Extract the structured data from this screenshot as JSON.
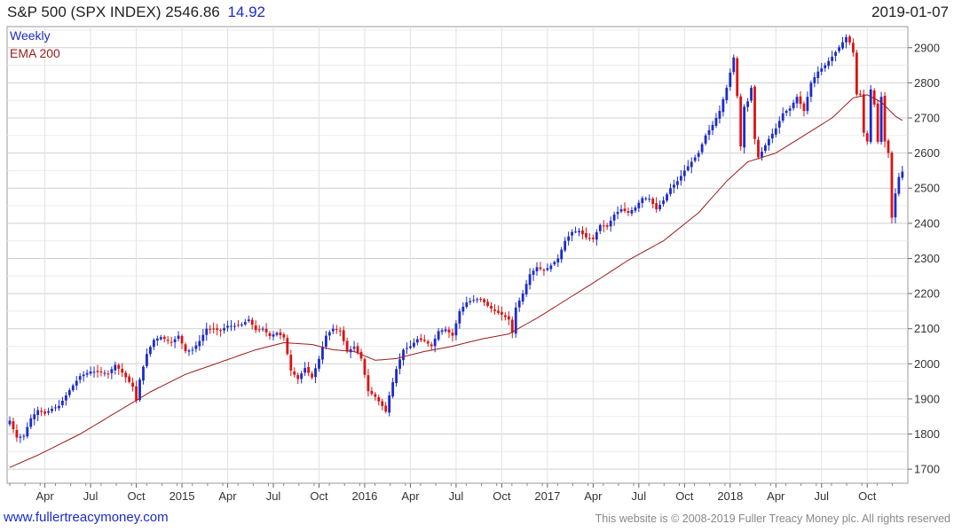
{
  "header": {
    "name": "S&P 500 (SPX INDEX)",
    "last": "2546.86",
    "change": "14.92"
  },
  "date": "2019-01-07",
  "footer": {
    "left": "www.fullertreacymoney.com",
    "right": "This website is © 2008-2019 Fuller Treacy Money plc. All rights reserved"
  },
  "colors": {
    "up": "#1a2bcc",
    "down": "#dd1111",
    "ema": "#9b1b1b"
  },
  "chart_data": {
    "type": "candlestick",
    "frequency": "Weekly",
    "legend": [
      "Weekly",
      "EMA 200"
    ],
    "ylim": [
      1660,
      2960
    ],
    "y_ticks": [
      1700,
      1800,
      1900,
      2000,
      2100,
      2200,
      2300,
      2400,
      2500,
      2600,
      2700,
      2800,
      2900
    ],
    "x_labels": [
      {
        "label": "Apr",
        "week": 10
      },
      {
        "label": "Jul",
        "week": 23
      },
      {
        "label": "Oct",
        "week": 36
      },
      {
        "label": "2015",
        "week": 49
      },
      {
        "label": "Apr",
        "week": 62
      },
      {
        "label": "Jul",
        "week": 75
      },
      {
        "label": "Oct",
        "week": 88
      },
      {
        "label": "2016",
        "week": 101
      },
      {
        "label": "Apr",
        "week": 114
      },
      {
        "label": "Jul",
        "week": 127
      },
      {
        "label": "Oct",
        "week": 140
      },
      {
        "label": "2017",
        "week": 153
      },
      {
        "label": "Apr",
        "week": 166
      },
      {
        "label": "Jul",
        "week": 179
      },
      {
        "label": "Oct",
        "week": 192
      },
      {
        "label": "2018",
        "week": 205
      },
      {
        "label": "Apr",
        "week": 218
      },
      {
        "label": "Jul",
        "week": 231
      },
      {
        "label": "Oct",
        "week": 244
      }
    ],
    "close_anchors": [
      [
        0,
        1838
      ],
      [
        2,
        1790
      ],
      [
        4,
        1795
      ],
      [
        6,
        1845
      ],
      [
        8,
        1868
      ],
      [
        10,
        1858
      ],
      [
        12,
        1872
      ],
      [
        14,
        1880
      ],
      [
        17,
        1925
      ],
      [
        20,
        1965
      ],
      [
        23,
        1978
      ],
      [
        26,
        1976
      ],
      [
        28,
        1972
      ],
      [
        30,
        1997
      ],
      [
        32,
        1975
      ],
      [
        35,
        1935
      ],
      [
        36,
        1895
      ],
      [
        37,
        1955
      ],
      [
        39,
        2028
      ],
      [
        41,
        2068
      ],
      [
        43,
        2076
      ],
      [
        46,
        2060
      ],
      [
        48,
        2080
      ],
      [
        50,
        2036
      ],
      [
        52,
        2040
      ],
      [
        54,
        2065
      ],
      [
        56,
        2100
      ],
      [
        58,
        2098
      ],
      [
        60,
        2095
      ],
      [
        62,
        2108
      ],
      [
        64,
        2108
      ],
      [
        66,
        2112
      ],
      [
        68,
        2126
      ],
      [
        70,
        2096
      ],
      [
        72,
        2100
      ],
      [
        74,
        2079
      ],
      [
        76,
        2088
      ],
      [
        78,
        2075
      ],
      [
        80,
        1981
      ],
      [
        82,
        1957
      ],
      [
        84,
        1988
      ],
      [
        86,
        1961
      ],
      [
        88,
        2014
      ],
      [
        90,
        2080
      ],
      [
        92,
        2100
      ],
      [
        94,
        2094
      ],
      [
        96,
        2035
      ],
      [
        98,
        2048
      ],
      [
        100,
        2015
      ],
      [
        102,
        1922
      ],
      [
        104,
        1906
      ],
      [
        106,
        1880
      ],
      [
        107,
        1864
      ],
      [
        108,
        1910
      ],
      [
        110,
        1985
      ],
      [
        112,
        2040
      ],
      [
        114,
        2050
      ],
      [
        116,
        2070
      ],
      [
        118,
        2065
      ],
      [
        120,
        2050
      ],
      [
        122,
        2093
      ],
      [
        124,
        2098
      ],
      [
        126,
        2080
      ],
      [
        128,
        2150
      ],
      [
        130,
        2175
      ],
      [
        132,
        2182
      ],
      [
        134,
        2185
      ],
      [
        136,
        2165
      ],
      [
        138,
        2150
      ],
      [
        140,
        2140
      ],
      [
        142,
        2126
      ],
      [
        143,
        2088
      ],
      [
        144,
        2160
      ],
      [
        146,
        2200
      ],
      [
        148,
        2255
      ],
      [
        150,
        2275
      ],
      [
        152,
        2265
      ],
      [
        154,
        2280
      ],
      [
        156,
        2300
      ],
      [
        158,
        2350
      ],
      [
        160,
        2375
      ],
      [
        162,
        2378
      ],
      [
        164,
        2360
      ],
      [
        166,
        2355
      ],
      [
        168,
        2395
      ],
      [
        170,
        2390
      ],
      [
        172,
        2425
      ],
      [
        174,
        2440
      ],
      [
        176,
        2430
      ],
      [
        178,
        2445
      ],
      [
        180,
        2472
      ],
      [
        182,
        2470
      ],
      [
        184,
        2440
      ],
      [
        186,
        2465
      ],
      [
        188,
        2500
      ],
      [
        190,
        2520
      ],
      [
        192,
        2550
      ],
      [
        194,
        2575
      ],
      [
        196,
        2600
      ],
      [
        198,
        2650
      ],
      [
        200,
        2680
      ],
      [
        202,
        2720
      ],
      [
        204,
        2786
      ],
      [
        206,
        2872
      ],
      [
        207,
        2762
      ],
      [
        208,
        2619
      ],
      [
        209,
        2732
      ],
      [
        210,
        2747
      ],
      [
        211,
        2786
      ],
      [
        212,
        2640
      ],
      [
        213,
        2588
      ],
      [
        214,
        2604
      ],
      [
        216,
        2640
      ],
      [
        218,
        2670
      ],
      [
        220,
        2713
      ],
      [
        222,
        2727
      ],
      [
        224,
        2760
      ],
      [
        226,
        2720
      ],
      [
        228,
        2800
      ],
      [
        230,
        2832
      ],
      [
        232,
        2850
      ],
      [
        234,
        2874
      ],
      [
        236,
        2901
      ],
      [
        238,
        2930
      ],
      [
        239,
        2915
      ],
      [
        240,
        2886
      ],
      [
        241,
        2767
      ],
      [
        242,
        2767
      ],
      [
        243,
        2658
      ],
      [
        244,
        2633
      ],
      [
        245,
        2781
      ],
      [
        246,
        2738
      ],
      [
        247,
        2632
      ],
      [
        248,
        2760
      ],
      [
        249,
        2633
      ],
      [
        250,
        2600
      ],
      [
        251,
        2416
      ],
      [
        252,
        2485
      ],
      [
        253,
        2532
      ],
      [
        254,
        2547
      ]
    ],
    "ema_anchors": [
      [
        0,
        1705
      ],
      [
        8,
        1740
      ],
      [
        20,
        1800
      ],
      [
        30,
        1860
      ],
      [
        40,
        1920
      ],
      [
        50,
        1970
      ],
      [
        60,
        2005
      ],
      [
        70,
        2040
      ],
      [
        78,
        2060
      ],
      [
        86,
        2055
      ],
      [
        92,
        2040
      ],
      [
        98,
        2035
      ],
      [
        104,
        2010
      ],
      [
        110,
        2015
      ],
      [
        118,
        2035
      ],
      [
        126,
        2050
      ],
      [
        134,
        2070
      ],
      [
        142,
        2085
      ],
      [
        150,
        2130
      ],
      [
        158,
        2180
      ],
      [
        166,
        2230
      ],
      [
        176,
        2295
      ],
      [
        186,
        2350
      ],
      [
        196,
        2430
      ],
      [
        204,
        2520
      ],
      [
        210,
        2575
      ],
      [
        218,
        2600
      ],
      [
        226,
        2650
      ],
      [
        234,
        2700
      ],
      [
        240,
        2757
      ],
      [
        244,
        2766
      ],
      [
        248,
        2745
      ],
      [
        252,
        2705
      ],
      [
        254,
        2693
      ]
    ]
  }
}
